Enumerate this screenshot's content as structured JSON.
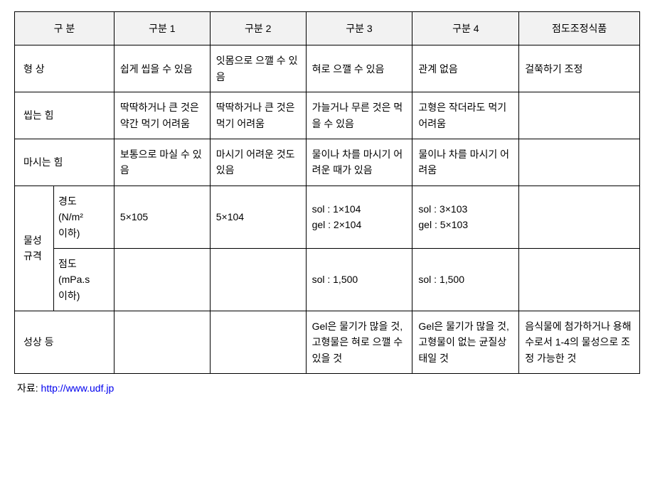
{
  "table": {
    "headers": {
      "category": "구  분",
      "col1": "구분 1",
      "col2": "구분 2",
      "col3": "구분 3",
      "col4": "구분 4",
      "col5": "점도조정식품"
    },
    "rows": {
      "shape": {
        "label": "형  상",
        "c1": "쉽게 씹을 수 있음",
        "c2": "잇몸으로 으깰 수 있음",
        "c3": "혀로 으깰 수 있음",
        "c4": "관계 없음",
        "c5": "걸쭉하기 조정"
      },
      "chewing": {
        "label": "씹는 힘",
        "c1": "딱딱하거나 큰 것은 약간 먹기 어려움",
        "c2": "딱딱하거나 큰 것은 먹기 어려움",
        "c3": "가늘거나 무른 것은 먹을 수 있음",
        "c4": "고형은 작더라도 먹기 어려움",
        "c5": ""
      },
      "drinking": {
        "label": "마시는 힘",
        "c1": "보통으로 마실 수 있음",
        "c2": "마시기 어려운 것도 있음",
        "c3": "물이나 차를 마시기 어려운 때가 있음",
        "c4": "물이나 차를 마시기 어려움",
        "c5": ""
      },
      "physical_spec_label": "물성\n규격",
      "hardness": {
        "label": "경도\n(N/m²\n이하)",
        "c1": "5×105",
        "c2": "5×104",
        "c3": "sol : 1×104\ngel : 2×104",
        "c4": "sol : 3×103\ngel : 5×103",
        "c5": ""
      },
      "viscosity": {
        "label": "점도\n(mPa.s\n이하)",
        "c1": "",
        "c2": "",
        "c3": "sol : 1,500",
        "c4": "sol : 1,500",
        "c5": ""
      },
      "properties": {
        "label": "성상 등",
        "c1": "",
        "c2": "",
        "c3": "Gel은 물기가 많을 것, 고형물은 혀로 으깰 수 있을 것",
        "c4": "Gel은 물기가 많을 것, 고형물이 없는 균질상태일 것",
        "c5": "음식물에 첨가하거나 용해수로서 1-4의 물성으로 조정 가능한 것"
      }
    }
  },
  "source": {
    "label": "자료: ",
    "url_text": "http://www.udf.jp",
    "url": "http://www.udf.jp"
  }
}
